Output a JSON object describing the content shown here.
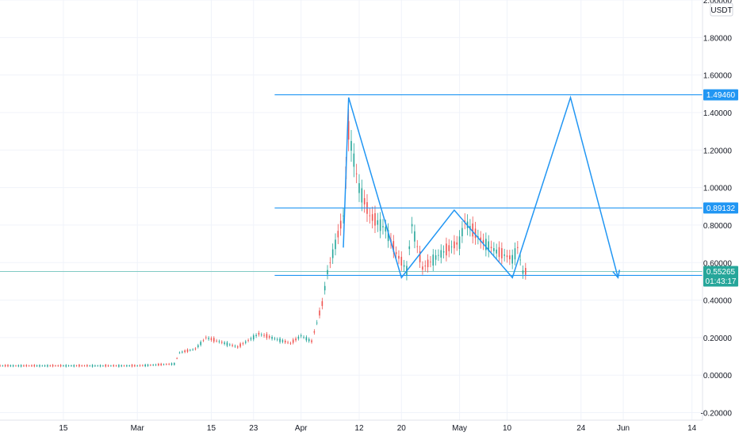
{
  "chart_data": {
    "type": "candlestick",
    "currency": "USDT",
    "grid": true,
    "y_scale": "linear",
    "ylim": [
      -0.24,
      2.0
    ],
    "y_ticks": [
      "2.00000",
      "1.80000",
      "1.60000",
      "1.40000",
      "1.20000",
      "1.00000",
      "0.80000",
      "0.60000",
      "0.40000",
      "0.20000",
      "0.00000",
      "-0.20000"
    ],
    "y_tick_values": [
      2.0,
      1.8,
      1.6,
      1.4,
      1.2,
      1.0,
      0.8,
      0.6,
      0.4,
      0.2,
      0.0,
      -0.2
    ],
    "x_ticks": [
      "15",
      "Mar",
      "15",
      "23",
      "Apr",
      "12",
      "20",
      "May",
      "10",
      "24",
      "Jun",
      "14"
    ],
    "x_tick_dates": [
      "2021-02-15",
      "2021-03-01",
      "2021-03-15",
      "2021-03-23",
      "2021-04-01",
      "2021-04-12",
      "2021-04-20",
      "2021-05-01",
      "2021-05-10",
      "2021-05-24",
      "2021-06-01",
      "2021-06-14"
    ],
    "x_range": [
      "2021-02-03",
      "2021-06-16"
    ],
    "colors": {
      "up": "#26a69a",
      "down": "#ef5350",
      "drawing": "#2196f3",
      "last_price": "#26a69a",
      "grid": "#f0f3fa",
      "price_line": "#80cbc4"
    },
    "price_series": [
      {
        "date": "2021-02-03",
        "value": 0.05
      },
      {
        "date": "2021-03-01",
        "value": 0.05
      },
      {
        "date": "2021-03-08",
        "value": 0.06
      },
      {
        "date": "2021-03-09",
        "value": 0.12
      },
      {
        "date": "2021-03-12",
        "value": 0.14
      },
      {
        "date": "2021-03-14",
        "value": 0.2
      },
      {
        "date": "2021-03-20",
        "value": 0.15
      },
      {
        "date": "2021-03-24",
        "value": 0.22
      },
      {
        "date": "2021-03-30",
        "value": 0.17
      },
      {
        "date": "2021-04-01",
        "value": 0.21
      },
      {
        "date": "2021-04-03",
        "value": 0.18
      },
      {
        "date": "2021-04-05",
        "value": 0.38
      },
      {
        "date": "2021-04-06",
        "value": 0.55
      },
      {
        "date": "2021-04-08",
        "value": 0.75
      },
      {
        "date": "2021-04-09",
        "value": 0.85
      },
      {
        "date": "2021-04-10",
        "value": 1.3
      },
      {
        "date": "2021-04-11",
        "value": 1.15
      },
      {
        "date": "2021-04-12",
        "value": 1.0
      },
      {
        "date": "2021-04-14",
        "value": 0.85
      },
      {
        "date": "2021-04-17",
        "value": 0.78
      },
      {
        "date": "2021-04-19",
        "value": 0.65
      },
      {
        "date": "2021-04-21",
        "value": 0.56
      },
      {
        "date": "2021-04-22",
        "value": 0.8
      },
      {
        "date": "2021-04-24",
        "value": 0.57
      },
      {
        "date": "2021-04-27",
        "value": 0.64
      },
      {
        "date": "2021-05-01",
        "value": 0.71
      },
      {
        "date": "2021-05-02",
        "value": 0.82
      },
      {
        "date": "2021-05-05",
        "value": 0.72
      },
      {
        "date": "2021-05-08",
        "value": 0.66
      },
      {
        "date": "2021-05-11",
        "value": 0.62
      },
      {
        "date": "2021-05-12",
        "value": 0.68
      },
      {
        "date": "2021-05-13",
        "value": 0.55
      },
      {
        "date": "2021-05-14",
        "value": 0.553
      }
    ],
    "horizontal_levels": [
      {
        "value": 1.4946,
        "label": "1.49460",
        "start_date": "2021-03-27"
      },
      {
        "value": 0.89132,
        "label": "0.89132",
        "start_date": "2021-03-27"
      },
      {
        "value": 0.5316,
        "label": "0.53160",
        "start_date": "2021-03-27"
      }
    ],
    "last_price": {
      "value": 0.55265,
      "label": "0.55265",
      "countdown": "01:43:17"
    },
    "pattern_path": [
      {
        "date": "2021-04-09",
        "value": 0.68
      },
      {
        "date": "2021-04-10",
        "value": 1.48
      },
      {
        "date": "2021-04-20",
        "value": 0.52
      },
      {
        "date": "2021-04-30",
        "value": 0.88
      },
      {
        "date": "2021-05-11",
        "value": 0.52
      },
      {
        "date": "2021-05-22",
        "value": 1.48
      },
      {
        "date": "2021-05-31",
        "value": 0.52
      }
    ]
  }
}
